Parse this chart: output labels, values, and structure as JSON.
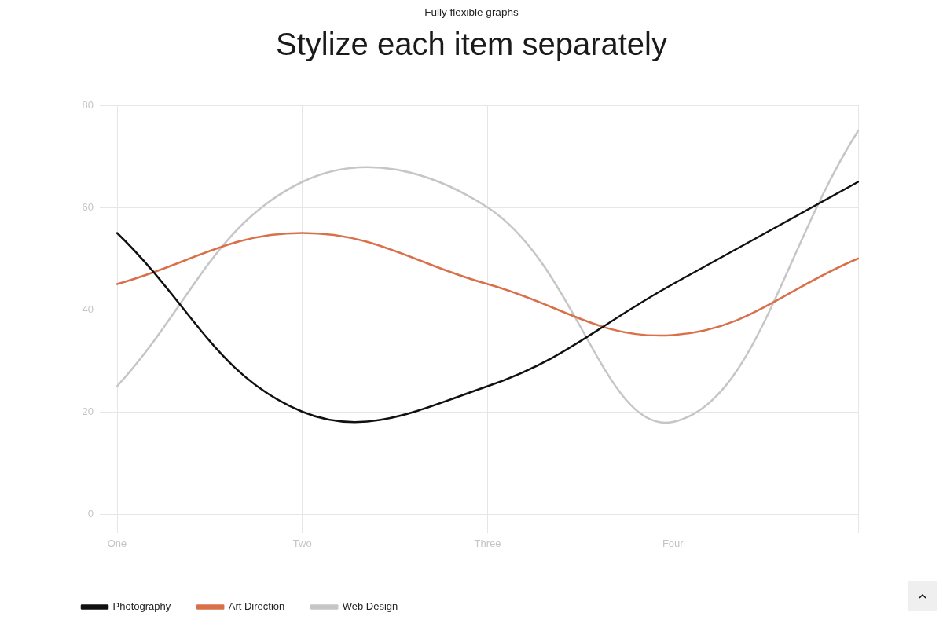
{
  "chart_data": {
    "type": "line",
    "title": "Stylize each item separately",
    "subtitle": "Fully flexible graphs",
    "categories": [
      "One",
      "Two",
      "Three",
      "Four",
      null
    ],
    "series": [
      {
        "name": "Photography",
        "color": "#111111",
        "values": [
          55,
          20,
          25,
          45,
          65
        ]
      },
      {
        "name": "Art Direction",
        "color": "#d9704a",
        "values": [
          45,
          55,
          45,
          35,
          50
        ]
      },
      {
        "name": "Web Design",
        "color": "#c6c6c6",
        "values": [
          25,
          65,
          60,
          18,
          75
        ]
      }
    ],
    "ylim": [
      0,
      80
    ],
    "yticks": [
      0,
      20,
      40,
      60,
      80
    ],
    "grid": true,
    "legend": "bottom left"
  }
}
